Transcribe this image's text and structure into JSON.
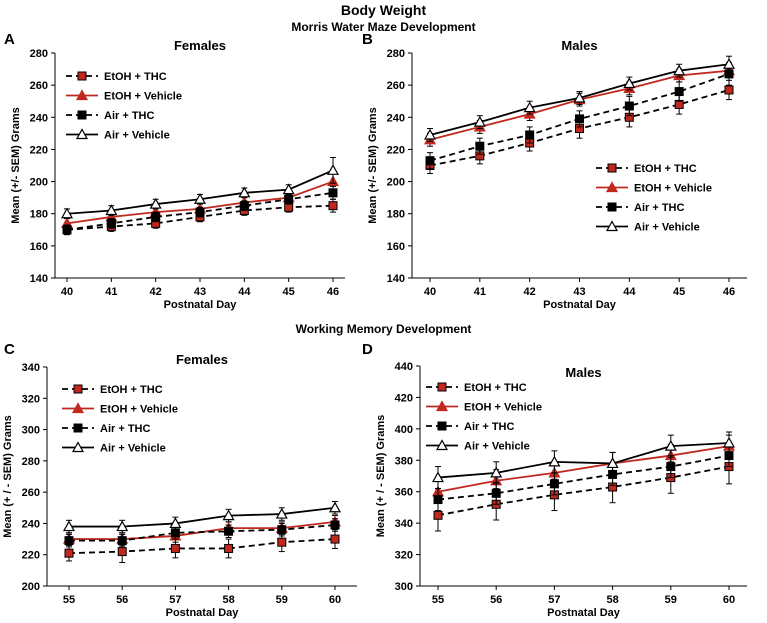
{
  "figure": {
    "title": "Body Weight",
    "subtitle_top": "Morris Water Maze Development",
    "subtitle_bottom": "Working Memory Development"
  },
  "chart_data": [
    {
      "panel": "A",
      "type": "line",
      "title": "Females",
      "xlabel": "Postnatal Day",
      "ylabel": "Mean (+/- SEM) Grams",
      "x": [
        40,
        41,
        42,
        43,
        44,
        45,
        46
      ],
      "ylim": [
        140,
        280
      ],
      "yticks": [
        140,
        160,
        180,
        200,
        220,
        240,
        260,
        280
      ],
      "legend_position": "top-left",
      "series": [
        {
          "name": "EtOH + THC",
          "values": [
            170,
            172,
            174,
            178,
            182,
            184,
            185
          ],
          "errors": [
            3,
            3,
            3,
            3,
            3,
            3,
            4
          ],
          "color": "#000000",
          "marker_color": "#c0281e",
          "marker": "square",
          "dashed": true
        },
        {
          "name": "EtOH + Vehicle",
          "values": [
            174,
            178,
            181,
            183,
            187,
            190,
            200
          ],
          "errors": [
            3,
            3,
            3,
            3,
            3,
            3,
            5
          ],
          "color": "#c0281e",
          "marker_color": "#c0281e",
          "marker": "triangle",
          "dashed": false
        },
        {
          "name": "Air + THC",
          "values": [
            170,
            174,
            178,
            181,
            185,
            189,
            193
          ],
          "errors": [
            3,
            3,
            3,
            3,
            3,
            3,
            4
          ],
          "color": "#000000",
          "marker_color": "#000000",
          "marker": "square",
          "dashed": true
        },
        {
          "name": "Air + Vehicle",
          "values": [
            180,
            182,
            186,
            189,
            193,
            195,
            207
          ],
          "errors": [
            3,
            3,
            3,
            3,
            3,
            3,
            8
          ],
          "color": "#000000",
          "marker_color": "#ffffff",
          "marker": "triangle",
          "dashed": false
        }
      ]
    },
    {
      "panel": "B",
      "type": "line",
      "title": "Males",
      "xlabel": "Postnatal Day",
      "ylabel": "Mean (+/- SEM) Grams",
      "x": [
        40,
        41,
        42,
        43,
        44,
        45,
        46
      ],
      "ylim": [
        140,
        280
      ],
      "yticks": [
        140,
        160,
        180,
        200,
        220,
        240,
        260,
        280
      ],
      "legend_position": "bottom-right",
      "series": [
        {
          "name": "EtOH + THC",
          "values": [
            210,
            216,
            224,
            233,
            240,
            248,
            257
          ],
          "errors": [
            5,
            5,
            5,
            6,
            6,
            6,
            6
          ],
          "color": "#000000",
          "marker_color": "#c0281e",
          "marker": "square",
          "dashed": true
        },
        {
          "name": "EtOH + Vehicle",
          "values": [
            226,
            234,
            242,
            251,
            258,
            266,
            269
          ],
          "errors": [
            4,
            4,
            4,
            4,
            4,
            4,
            4
          ],
          "color": "#c0281e",
          "marker_color": "#c0281e",
          "marker": "triangle",
          "dashed": false
        },
        {
          "name": "Air + THC",
          "values": [
            213,
            222,
            229,
            239,
            247,
            256,
            267
          ],
          "errors": [
            5,
            5,
            5,
            5,
            6,
            6,
            7
          ],
          "color": "#000000",
          "marker_color": "#000000",
          "marker": "square",
          "dashed": true
        },
        {
          "name": "Air + Vehicle",
          "values": [
            229,
            237,
            246,
            252,
            261,
            269,
            273
          ],
          "errors": [
            4,
            4,
            4,
            4,
            4,
            4,
            5
          ],
          "color": "#000000",
          "marker_color": "#ffffff",
          "marker": "triangle",
          "dashed": false
        }
      ]
    },
    {
      "panel": "C",
      "type": "line",
      "title": "Females",
      "xlabel": "Postnatal Day",
      "ylabel": "Mean (+ / - SEM) Grams",
      "x": [
        55,
        56,
        57,
        58,
        59,
        60
      ],
      "ylim": [
        200,
        340
      ],
      "yticks": [
        200,
        220,
        240,
        260,
        280,
        300,
        320,
        340
      ],
      "legend_position": "top-left",
      "series": [
        {
          "name": "EtOH + THC",
          "values": [
            221,
            222,
            224,
            224,
            228,
            230
          ],
          "errors": [
            5,
            7,
            6,
            6,
            6,
            6
          ],
          "color": "#000000",
          "marker_color": "#c0281e",
          "marker": "square",
          "dashed": true
        },
        {
          "name": "EtOH + Vehicle",
          "values": [
            230,
            230,
            232,
            237,
            237,
            241
          ],
          "errors": [
            4,
            4,
            4,
            4,
            4,
            4
          ],
          "color": "#c0281e",
          "marker_color": "#c0281e",
          "marker": "triangle",
          "dashed": false
        },
        {
          "name": "Air + THC",
          "values": [
            229,
            229,
            234,
            235,
            236,
            239
          ],
          "errors": [
            4,
            4,
            4,
            4,
            4,
            4
          ],
          "color": "#000000",
          "marker_color": "#000000",
          "marker": "square",
          "dashed": true
        },
        {
          "name": "Air + Vehicle",
          "values": [
            238,
            238,
            240,
            245,
            246,
            250
          ],
          "errors": [
            4,
            4,
            4,
            4,
            4,
            4
          ],
          "color": "#000000",
          "marker_color": "#ffffff",
          "marker": "triangle",
          "dashed": false
        }
      ]
    },
    {
      "panel": "D",
      "type": "line",
      "title": "Males",
      "xlabel": "Postnatal Day",
      "ylabel": "Mean (+ / - SEM) Grams",
      "x": [
        55,
        56,
        57,
        58,
        59,
        60
      ],
      "ylim": [
        300,
        440
      ],
      "yticks": [
        300,
        320,
        340,
        360,
        380,
        400,
        420,
        440
      ],
      "legend_position": "top-left",
      "series": [
        {
          "name": "EtOH + THC",
          "values": [
            345,
            352,
            358,
            363,
            369,
            376
          ],
          "errors": [
            10,
            10,
            10,
            10,
            10,
            11
          ],
          "color": "#000000",
          "marker_color": "#c0281e",
          "marker": "square",
          "dashed": true
        },
        {
          "name": "EtOH + Vehicle",
          "values": [
            360,
            367,
            372,
            378,
            383,
            389
          ],
          "errors": [
            7,
            7,
            7,
            7,
            7,
            7
          ],
          "color": "#c0281e",
          "marker_color": "#c0281e",
          "marker": "triangle",
          "dashed": false
        },
        {
          "name": "Air + THC",
          "values": [
            355,
            359,
            365,
            371,
            376,
            383
          ],
          "errors": [
            7,
            7,
            7,
            7,
            7,
            7
          ],
          "color": "#000000",
          "marker_color": "#000000",
          "marker": "square",
          "dashed": true
        },
        {
          "name": "Air + Vehicle",
          "values": [
            369,
            372,
            379,
            378,
            389,
            391
          ],
          "errors": [
            7,
            7,
            7,
            7,
            7,
            7
          ],
          "color": "#000000",
          "marker_color": "#ffffff",
          "marker": "triangle",
          "dashed": false
        }
      ]
    }
  ]
}
